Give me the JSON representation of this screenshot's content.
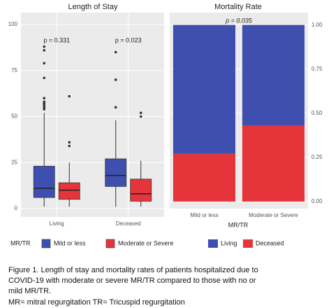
{
  "chart_data": [
    {
      "type": "box",
      "title": "Length of Stay",
      "categories": [
        "Living",
        "Deceased"
      ],
      "legend_title": "MR/TR",
      "series": [
        {
          "name": "Mild or less",
          "color": "#3f4fb0",
          "min": [
            1,
            1
          ],
          "q1": [
            6,
            12
          ],
          "median": [
            11,
            18
          ],
          "q3": [
            23,
            27
          ],
          "max": [
            52,
            48
          ],
          "outliers": [
            [
              88,
              86,
              79,
              71,
              60,
              58,
              57,
              56,
              55,
              54
            ],
            [
              85,
              70,
              55
            ]
          ]
        },
        {
          "name": "Moderate or Severe",
          "color": "#e5343a",
          "min": [
            1,
            1
          ],
          "q1": [
            5,
            4
          ],
          "median": [
            10,
            8
          ],
          "q3": [
            14,
            16
          ],
          "max": [
            25,
            26
          ],
          "outliers": [
            [
              61,
              36,
              34
            ],
            [
              52,
              50
            ]
          ]
        }
      ],
      "annotations": [
        "p = 0.331",
        "p = 0.023"
      ],
      "ylim": [
        -4.6,
        106.5
      ],
      "yticks": [
        0,
        25,
        50,
        75,
        100
      ],
      "grid": true
    },
    {
      "type": "stacked_bar",
      "title": "Mortality Rate",
      "categories": [
        "Mild or less",
        "Moderate or Severe"
      ],
      "x_label": "MR/TR",
      "series": [
        {
          "name": "Living",
          "color": "#3f4fb0",
          "values": [
            0.73,
            0.57
          ]
        },
        {
          "name": "Deceased",
          "color": "#e5343a",
          "values": [
            0.27,
            0.43
          ]
        }
      ],
      "annotations": [
        "p = 0.035"
      ],
      "ylim": [
        -0.04,
        1.07
      ],
      "yticks": [
        {
          "value": 0,
          "label": "0.00"
        },
        {
          "value": 0.25,
          "label": "0.25"
        },
        {
          "value": 0.5,
          "label": "0.50"
        },
        {
          "value": 0.75,
          "label": "0.75"
        },
        {
          "value": 1,
          "label": "1.00"
        }
      ],
      "grid": true
    }
  ],
  "caption": [
    "Figure 1. Length of stay and mortality rates of patients hospitalized due to",
    "COVID-19 with moderate or severe MR/TR compared to those with no or",
    "mild MR/TR.",
    "MR= mitral regurgitation TR= Tricuspid regurgitation"
  ]
}
